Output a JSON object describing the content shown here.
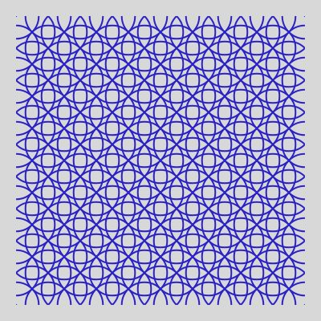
{
  "pattern": {
    "name": "overlapping-circles",
    "background_color": "#d8d8d8",
    "stroke_color": "#2a22c4",
    "columns": 9,
    "rows": 9
  }
}
